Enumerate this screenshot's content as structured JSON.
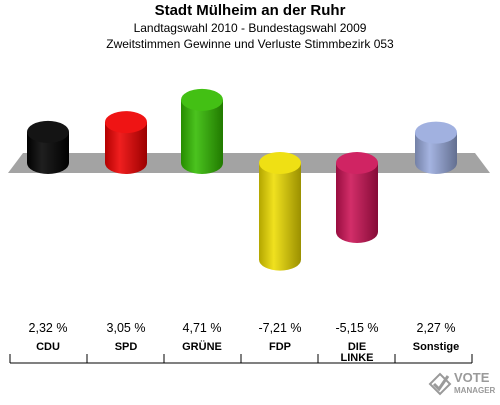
{
  "header": {
    "title": "Stadt Mülheim an der Ruhr",
    "subtitle1": "Landtagswahl 2010 - Bundestagswahl 2009",
    "subtitle2": "Zweitstimmen Gewinne und Verluste Stimmbezirk 053"
  },
  "chart_data": {
    "type": "bar",
    "title": "Stadt Mülheim an der Ruhr",
    "categories": [
      "CDU",
      "SPD",
      "GRÜNE",
      "FDP",
      "DIE LINKE",
      "Sonstige"
    ],
    "values": [
      2.32,
      3.05,
      4.71,
      -7.21,
      -5.15,
      2.27
    ],
    "value_labels": [
      "2,32 %",
      "3,05 %",
      "4,71 %",
      "-7,21 %",
      "-5,15 %",
      "2,27 %"
    ],
    "colors": [
      "#000000",
      "#ee0000",
      "#33bb00",
      "#eedd00",
      "#cc1155",
      "#99aadd"
    ],
    "ylim": [
      -8,
      5
    ],
    "grid": false,
    "legend": "none"
  },
  "watermark": {
    "line1": "VOTE",
    "line2": "MANAGER"
  }
}
